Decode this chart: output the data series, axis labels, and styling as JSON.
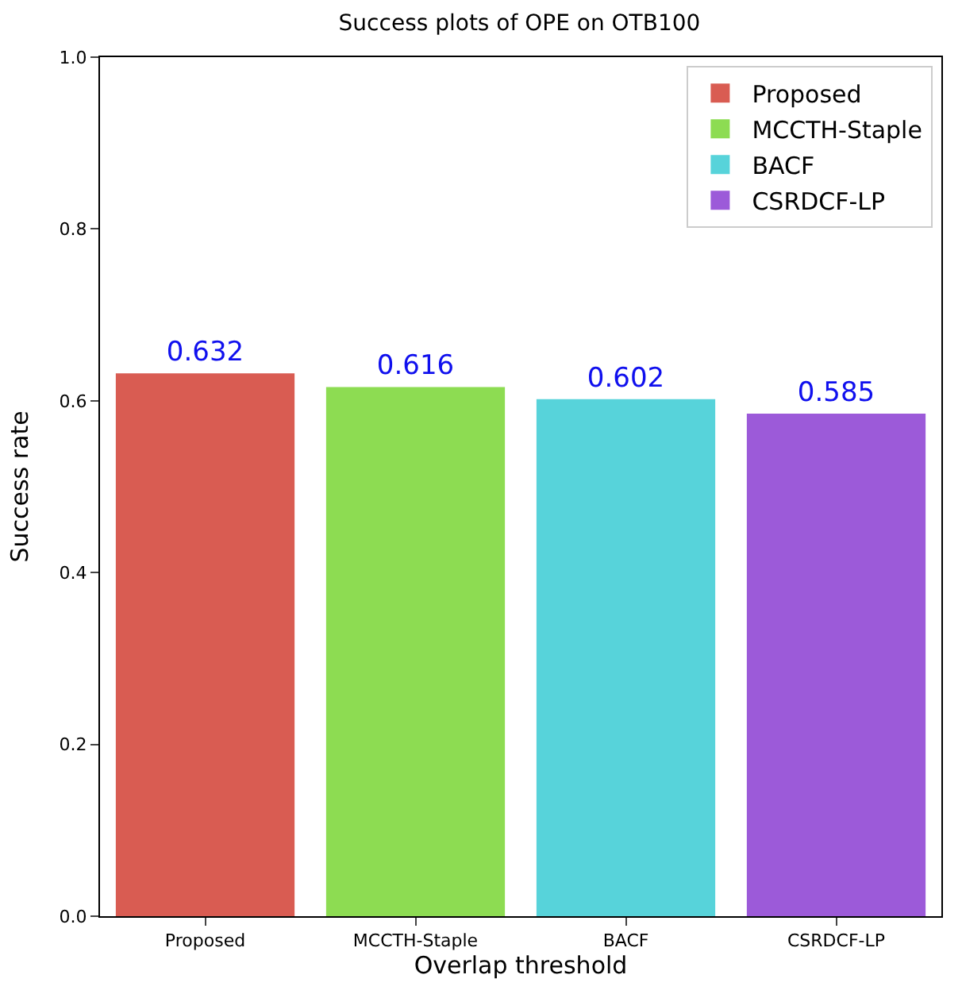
{
  "chart_data": {
    "type": "bar",
    "title": "Success plots of OPE on OTB100",
    "xlabel": "Overlap threshold",
    "ylabel": "Success rate",
    "categories": [
      "Proposed",
      "MCCTH-Staple",
      "BACF",
      "CSRDCF-LP"
    ],
    "series": [
      {
        "name": "Proposed",
        "color": "#d95c52",
        "values": [
          0.632,
          null,
          null,
          null
        ]
      },
      {
        "name": "MCCTH-Staple",
        "color": "#8ddc52",
        "values": [
          null,
          0.616,
          null,
          null
        ]
      },
      {
        "name": "BACF",
        "color": "#57d3da",
        "values": [
          null,
          null,
          0.602,
          null
        ]
      },
      {
        "name": "CSRDCF-LP",
        "color": "#9c5ad9",
        "values": [
          null,
          null,
          null,
          0.585
        ]
      }
    ],
    "ylim": [
      0,
      1
    ],
    "yticks": [
      {
        "value": 0,
        "label": "0.0"
      },
      {
        "value": 0.2,
        "label": "0.2"
      },
      {
        "value": 0.4,
        "label": "0.4"
      },
      {
        "value": 0.6,
        "label": "0.6"
      },
      {
        "value": 0.8,
        "label": "0.8"
      },
      {
        "value": 1,
        "label": "1.0"
      }
    ],
    "legend": "top right",
    "data_labels": true
  }
}
